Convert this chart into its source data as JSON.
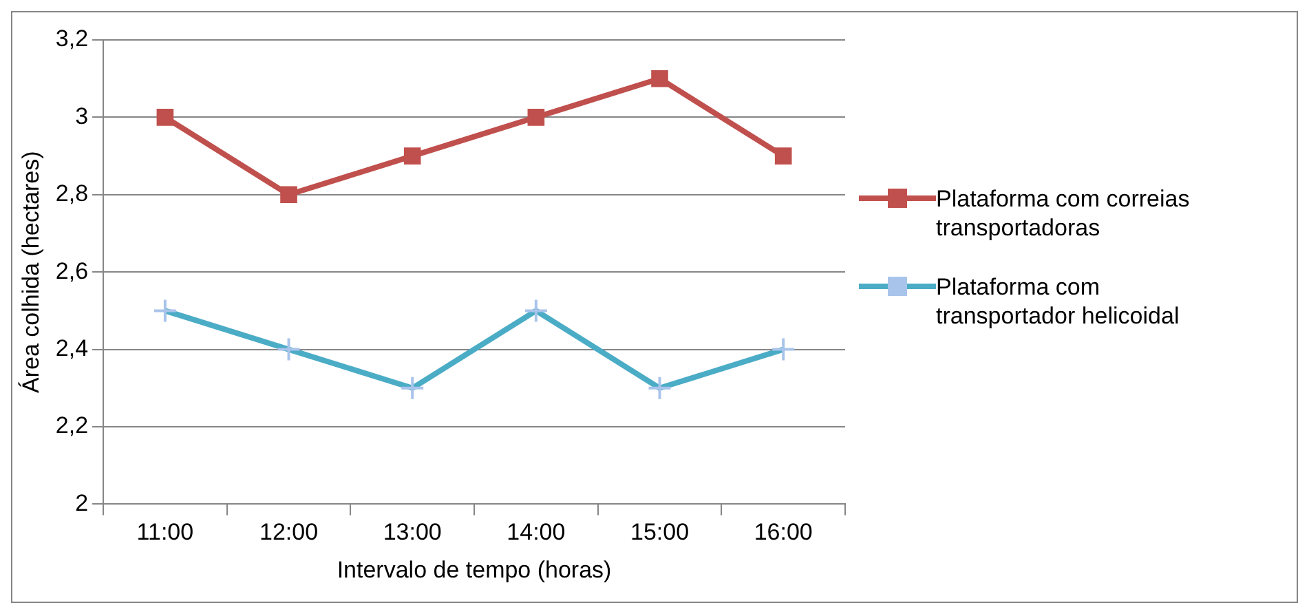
{
  "chart_data": {
    "type": "line",
    "xlabel": "Intervalo de tempo (horas)",
    "ylabel": "Área colhida (hectares)",
    "categories": [
      "11:00",
      "12:00",
      "13:00",
      "14:00",
      "15:00",
      "16:00"
    ],
    "series": [
      {
        "name": "Plataforma com correias transportadoras",
        "color": "#c0504d",
        "marker": "square",
        "values": [
          3.0,
          2.8,
          2.9,
          3.0,
          3.1,
          2.9
        ]
      },
      {
        "name": "Plataforma com transportador helicoidal",
        "color": "#4bacc6",
        "marker": "cross",
        "values": [
          2.5,
          2.4,
          2.3,
          2.5,
          2.3,
          2.4
        ]
      }
    ],
    "ylim": [
      2,
      3.2
    ],
    "yticks": [
      2,
      {
        "value": 2.2,
        "label": "2,2"
      },
      {
        "value": 2.4,
        "label": "2,4"
      },
      {
        "value": 2.6,
        "label": "2,6"
      },
      {
        "value": 2.8,
        "label": "2,8"
      },
      3,
      {
        "value": 3.2,
        "label": "3,2"
      }
    ],
    "grid": "y",
    "legend": "right",
    "line_style": "solid"
  }
}
